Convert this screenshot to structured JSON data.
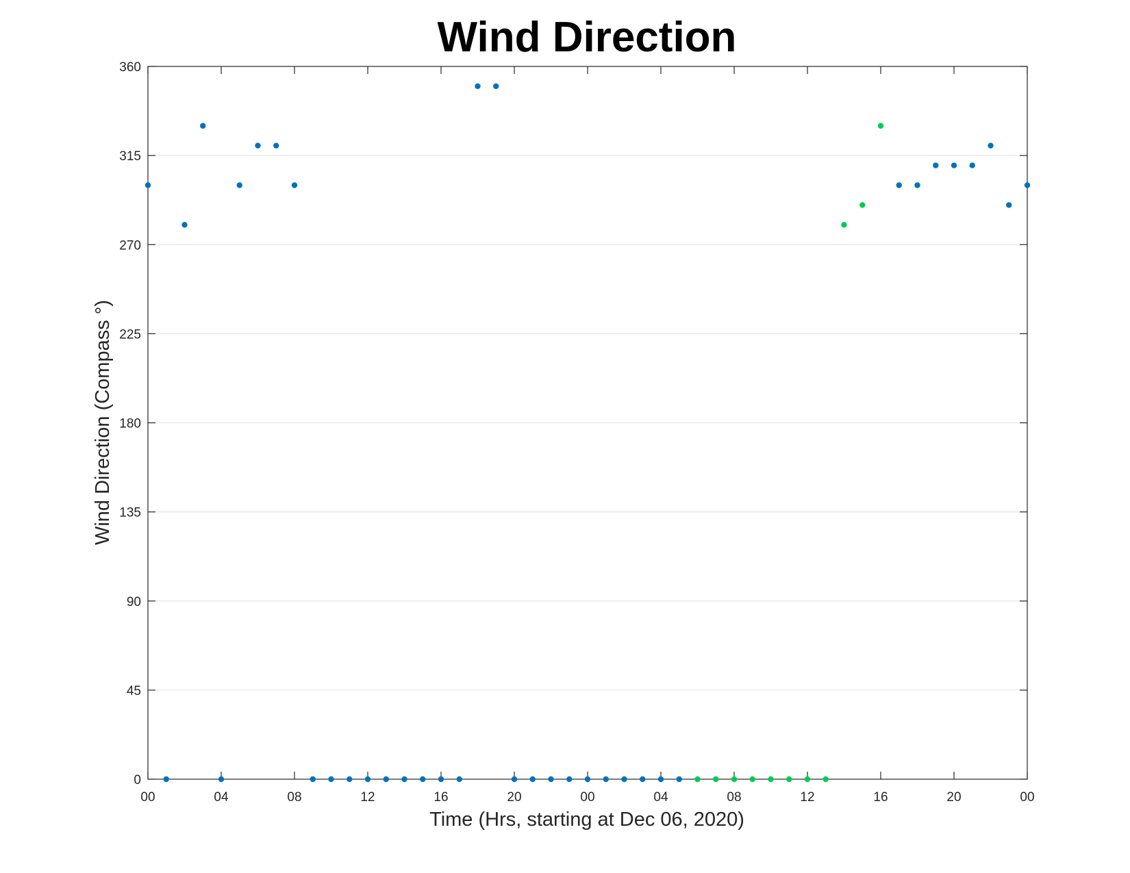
{
  "chart_data": {
    "type": "scatter",
    "title": "Wind Direction",
    "xlabel": "Time (Hrs, starting at Dec 06, 2020)",
    "ylabel": "Wind Direction (Compass °)",
    "xlim": [
      0,
      48
    ],
    "ylim": [
      0,
      360
    ],
    "x_unit": "hours",
    "x_ticks": [
      0,
      4,
      8,
      12,
      16,
      20,
      24,
      28,
      32,
      36,
      40,
      44,
      48
    ],
    "x_tick_labels": [
      "00",
      "04",
      "08",
      "12",
      "16",
      "20",
      "00",
      "04",
      "08",
      "12",
      "16",
      "20",
      "00"
    ],
    "y_ticks": [
      0,
      45,
      90,
      135,
      180,
      225,
      270,
      315,
      360
    ],
    "grid": "horizontal",
    "legend": "none",
    "series": [
      {
        "color": "#0072BD",
        "x": [
          0,
          1,
          2,
          3,
          4,
          5,
          6,
          7,
          8,
          9,
          10,
          11,
          12,
          13,
          14,
          15,
          16,
          17,
          18,
          19,
          20,
          21,
          22,
          23,
          24,
          25,
          26,
          27,
          28,
          29,
          41,
          42,
          43,
          44,
          45,
          46,
          47,
          48
        ],
        "y": [
          300,
          0,
          280,
          330,
          0,
          300,
          320,
          320,
          300,
          0,
          0,
          0,
          0,
          0,
          0,
          0,
          0,
          0,
          350,
          350,
          0,
          0,
          0,
          0,
          0,
          0,
          0,
          0,
          0,
          0,
          300,
          300,
          310,
          310,
          310,
          320,
          290,
          300
        ]
      },
      {
        "color": "#00CC55",
        "x": [
          30,
          31,
          32,
          33,
          34,
          35,
          36,
          37,
          38,
          39,
          40
        ],
        "y": [
          0,
          0,
          0,
          0,
          0,
          0,
          0,
          0,
          280,
          290,
          330
        ]
      }
    ]
  }
}
